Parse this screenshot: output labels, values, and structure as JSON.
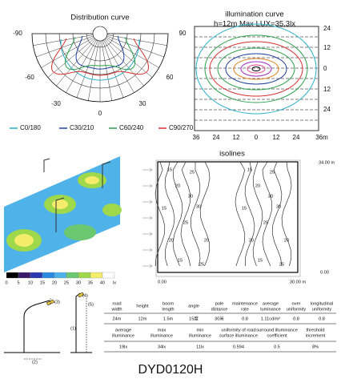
{
  "distribution": {
    "title": "Distribution curve",
    "angles": [
      "-90",
      "90",
      "-60",
      "60",
      "-30",
      "30",
      "0"
    ],
    "legend": [
      {
        "name": "C0/180",
        "color": "#2ab0c8"
      },
      {
        "name": "C30/210",
        "color": "#2340a0"
      },
      {
        "name": "C60/240",
        "color": "#2aa04a"
      },
      {
        "name": "C90/270",
        "color": "#d83030"
      }
    ]
  },
  "illumination": {
    "title": "illumination curve",
    "subtitle": "h=12m Max LUX=35.3lx",
    "y_labels": [
      "24",
      "12",
      "0",
      "12",
      "24"
    ],
    "x_labels": [
      "36",
      "24",
      "12",
      "0",
      "12",
      "24",
      "36m"
    ]
  },
  "heatmap": {
    "scale": [
      "0",
      "5",
      "10",
      "15",
      "20",
      "25",
      "30",
      "35",
      "40",
      "lx"
    ]
  },
  "isolines": {
    "title": "isolines",
    "top_right": "34.00 m",
    "bottom_right": "0.00",
    "bottom_left": "0.00",
    "bottom_end": "30.00 m",
    "labels": [
      "15",
      "20",
      "25",
      "30",
      "25",
      "20",
      "15",
      "20",
      "30",
      "25",
      "15",
      "15",
      "20",
      "25",
      "30",
      "25",
      "20",
      "15",
      "20",
      "30",
      "25",
      "15"
    ]
  },
  "pole": {
    "labels": [
      "(3)",
      "(4)",
      "(5)",
      "(1)",
      "(2)"
    ]
  },
  "table": {
    "row1_headers": [
      [
        "road",
        "width"
      ],
      [
        "height"
      ],
      [
        "boom",
        "length"
      ],
      [
        "angle"
      ],
      [
        "pole",
        "distance"
      ],
      [
        "maintenance",
        "rate"
      ],
      [
        "average",
        "luminance"
      ],
      [
        "over",
        "uniformity"
      ],
      [
        "longitudinal",
        "uniformity"
      ]
    ],
    "row1_values": [
      "24m",
      "12m",
      "1.5m",
      "15度",
      "30米",
      "0.8",
      "1.11cd/m²",
      "0.8",
      "0.8"
    ],
    "row2_headers": [
      [
        "average",
        "illuminance"
      ],
      [
        "max",
        "illuminance"
      ],
      [
        "min",
        "illuminance"
      ],
      [
        "uniformity of road",
        "surface illuminance"
      ],
      [
        "surround illuminance",
        "coefficient"
      ],
      [
        "threshold",
        "increment"
      ]
    ],
    "row2_values": [
      "19lx",
      "34lx",
      "11lx",
      "0.594",
      "0.5",
      "8%"
    ]
  },
  "footer": "DYD0120H"
}
